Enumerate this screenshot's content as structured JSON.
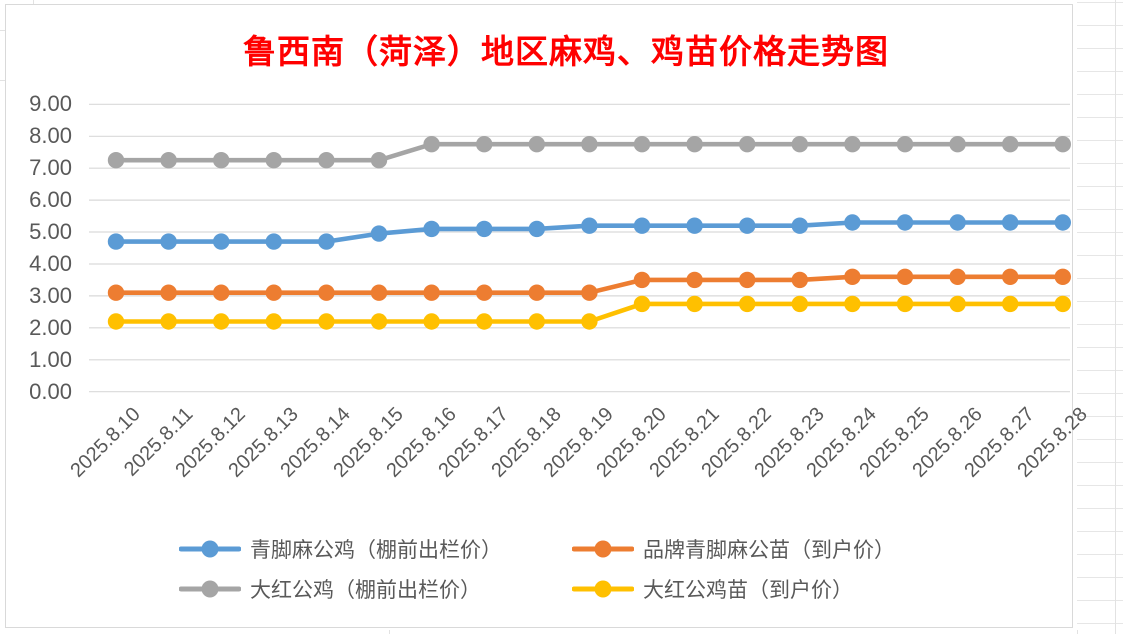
{
  "chart_data": {
    "type": "line",
    "title": "鲁西南（菏泽）地区麻鸡、鸡苗价格走势图",
    "title_color": "#FF0000",
    "categories": [
      "2025.8.10",
      "2025.8.11",
      "2025.8.12",
      "2025.8.13",
      "2025.8.14",
      "2025.8.15",
      "2025.8.16",
      "2025.8.17",
      "2025.8.18",
      "2025.8.19",
      "2025.8.20",
      "2025.8.21",
      "2025.8.22",
      "2025.8.23",
      "2025.8.24",
      "2025.8.25",
      "2025.8.26",
      "2025.8.27",
      "2025.8.28"
    ],
    "series": [
      {
        "name": "青脚麻公鸡（棚前出栏价）",
        "color": "#5B9BD5",
        "values": [
          4.7,
          4.7,
          4.7,
          4.7,
          4.7,
          4.95,
          5.1,
          5.1,
          5.1,
          5.2,
          5.2,
          5.2,
          5.2,
          5.2,
          5.3,
          5.3,
          5.3,
          5.3,
          5.3
        ]
      },
      {
        "name": "品牌青脚麻公苗（到户价）",
        "color": "#ED7D31",
        "values": [
          3.1,
          3.1,
          3.1,
          3.1,
          3.1,
          3.1,
          3.1,
          3.1,
          3.1,
          3.1,
          3.5,
          3.5,
          3.5,
          3.5,
          3.6,
          3.6,
          3.6,
          3.6,
          3.6
        ]
      },
      {
        "name": "大红公鸡（棚前出栏价）",
        "color": "#A5A5A5",
        "values": [
          7.25,
          7.25,
          7.25,
          7.25,
          7.25,
          7.25,
          7.75,
          7.75,
          7.75,
          7.75,
          7.75,
          7.75,
          7.75,
          7.75,
          7.75,
          7.75,
          7.75,
          7.75,
          7.75
        ]
      },
      {
        "name": "大红公鸡苗（到户价）",
        "color": "#FFC000",
        "values": [
          2.2,
          2.2,
          2.2,
          2.2,
          2.2,
          2.2,
          2.2,
          2.2,
          2.2,
          2.2,
          2.75,
          2.75,
          2.75,
          2.75,
          2.75,
          2.75,
          2.75,
          2.75,
          2.75
        ]
      }
    ],
    "ylim": [
      0,
      9
    ],
    "y_ticks": [
      "0.00",
      "1.00",
      "2.00",
      "3.00",
      "4.00",
      "5.00",
      "6.00",
      "7.00",
      "8.00",
      "9.00"
    ],
    "grid": true,
    "gridline_color": "#D9D9D9",
    "axis_text_color": "#595959",
    "legend_position": "bottom"
  }
}
